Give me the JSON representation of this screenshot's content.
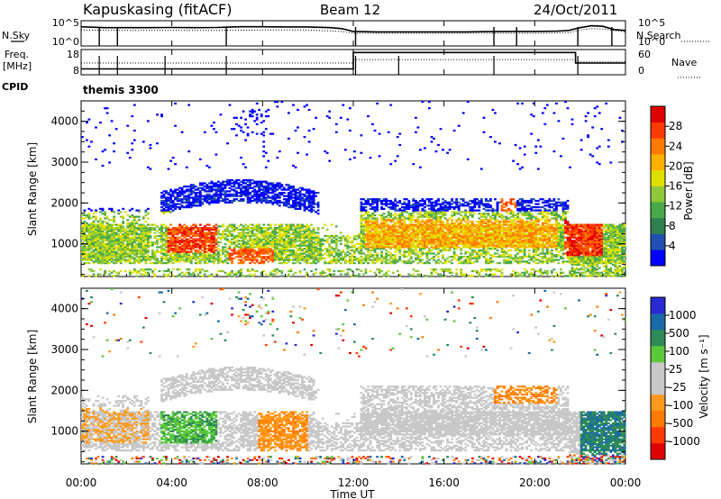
{
  "header": {
    "station": "Kapuskasing (fitACF)",
    "beam": "Beam 12",
    "date": "24/Oct/2011"
  },
  "labels": {
    "nsky": "N.Sky",
    "nsearch": "N.Search",
    "freq_line1": "Freq.",
    "freq_line2": "[MHz]",
    "nave": "Nave",
    "cpid": "CPID",
    "cpid_value": "themis 3300",
    "x_title": "Time UT"
  },
  "colors": {
    "frame": "#000000",
    "power_scale": [
      "#0000ff",
      "#1f4fb0",
      "#2f7f4f",
      "#49a84a",
      "#8fc93a",
      "#e0e000",
      "#ffb000",
      "#ff7a00",
      "#ff3a00",
      "#e00000"
    ],
    "velocity_scale": [
      "#2a2ad0",
      "#1a6aa8",
      "#2e8b57",
      "#5ac83a",
      "#c8c8c8",
      "#c8c8c8",
      "#ff9a1a",
      "#ff7a00",
      "#ff3a00",
      "#e00000"
    ]
  },
  "chart_data": [
    {
      "id": "noise",
      "type": "line",
      "y_left_ticks": [
        "10^5",
        "10^0"
      ],
      "y_right_ticks": [
        "10^5",
        "10^0"
      ],
      "series": [
        {
          "name": "N.Sky",
          "style": "solid",
          "x": [
            0,
            0.5,
            1,
            2,
            3,
            4,
            5,
            6,
            7,
            8,
            9,
            10,
            11,
            11.5,
            12,
            13,
            14,
            15,
            16,
            17,
            18,
            19,
            20,
            21,
            21.5,
            22,
            22.5,
            23,
            23.5,
            24
          ],
          "y": [
            4.1,
            4.0,
            3.9,
            3.9,
            3.9,
            3.95,
            3.9,
            3.95,
            4.1,
            4.1,
            4.05,
            4.05,
            3.9,
            3.7,
            3.1,
            3.0,
            3.0,
            3.0,
            3.0,
            3.0,
            3.05,
            3.1,
            3.1,
            3.15,
            3.3,
            3.9,
            4.3,
            4.2,
            3.5,
            3.3
          ]
        },
        {
          "name": "N.Search",
          "style": "dotted",
          "x": [
            0,
            2,
            4,
            6,
            8,
            10,
            11.5,
            12,
            14,
            16,
            18,
            20,
            21.5,
            22,
            22.5,
            23,
            24
          ],
          "y": [
            3.4,
            3.3,
            3.3,
            3.3,
            3.4,
            3.4,
            3.1,
            2.7,
            2.7,
            2.7,
            2.7,
            2.7,
            2.8,
            3.4,
            3.7,
            3.6,
            3.0
          ]
        }
      ]
    },
    {
      "id": "freq_nave",
      "type": "line",
      "y_left_ticks": [
        "18",
        "8"
      ],
      "y_right_ticks": [
        "60",
        "0"
      ],
      "series": [
        {
          "name": "Freq.",
          "style": "solid",
          "x": [
            0,
            12,
            12,
            21.8,
            21.8,
            24
          ],
          "y": [
            10.5,
            10.5,
            17.5,
            17.5,
            13,
            13
          ]
        },
        {
          "name": "Nave",
          "style": "dotted",
          "x": [
            0,
            12,
            12,
            21.8,
            21.8,
            24
          ],
          "y": [
            13,
            13,
            14.5,
            14.5,
            13.5,
            13.5
          ]
        }
      ]
    },
    {
      "id": "power",
      "type": "heatmap",
      "ylabel": "Slant Range [km]",
      "ylim": [
        200,
        4500
      ],
      "y_ticks": [
        "1000",
        "2000",
        "3000",
        "4000"
      ],
      "colorbar_label": "Power [dB]",
      "colorbar_ticks": [
        "4",
        "8",
        "12",
        "16",
        "20",
        "24",
        "28"
      ]
    },
    {
      "id": "velocity",
      "type": "heatmap",
      "ylabel": "Slant Range [km]",
      "ylim": [
        200,
        4500
      ],
      "y_ticks": [
        "1000",
        "2000",
        "3000",
        "4000"
      ],
      "colorbar_label": "Velocity [m s⁻¹]",
      "colorbar_ticks": [
        "1000",
        "500",
        "100",
        "25",
        "-25",
        "-100",
        "-500",
        "-1000"
      ],
      "xlabel": "Time UT",
      "xlim": [
        0,
        24
      ],
      "x_ticks": [
        "00:00",
        "04:00",
        "08:00",
        "12:00",
        "16:00",
        "20:00",
        "00:00"
      ]
    }
  ]
}
